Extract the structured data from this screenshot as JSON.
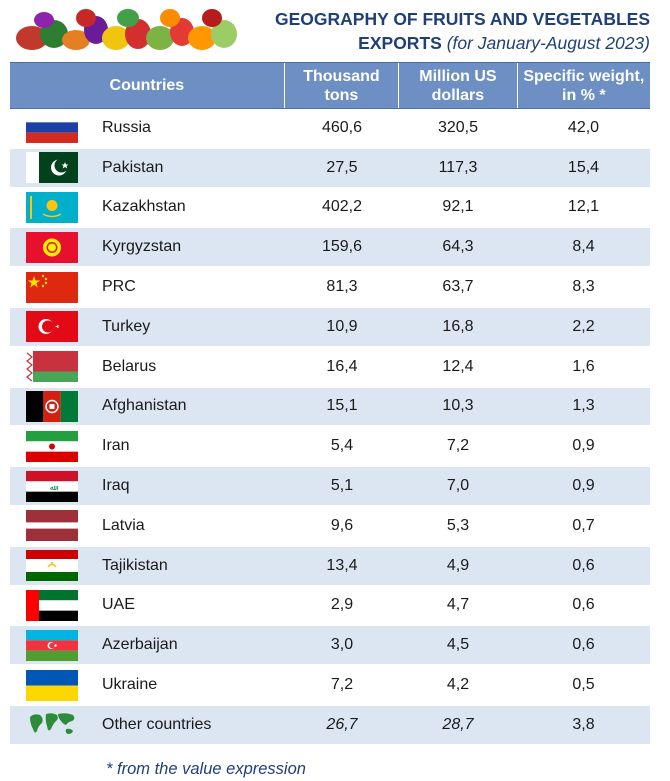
{
  "title": {
    "line1": "GEOGRAPHY OF FRUITS AND VEGETABLES",
    "line2": "EXPORTS",
    "period": "(for January-August 2023)"
  },
  "chart_data": {
    "type": "table",
    "columns": [
      "Countries",
      "Thousand tons",
      "Million US dollars",
      "Specific weight, in % *"
    ],
    "rows": [
      {
        "country": "Russia",
        "tons": "460,6",
        "usd": "320,5",
        "share": "42,0"
      },
      {
        "country": "Pakistan",
        "tons": "27,5",
        "usd": "117,3",
        "share": "15,4"
      },
      {
        "country": "Kazakhstan",
        "tons": "402,2",
        "usd": "92,1",
        "share": "12,1"
      },
      {
        "country": "Kyrgyzstan",
        "tons": "159,6",
        "usd": "64,3",
        "share": "8,4"
      },
      {
        "country": "PRC",
        "tons": "81,3",
        "usd": "63,7",
        "share": "8,3"
      },
      {
        "country": "Turkey",
        "tons": "10,9",
        "usd": "16,8",
        "share": "2,2"
      },
      {
        "country": "Belarus",
        "tons": "16,4",
        "usd": "12,4",
        "share": "1,6"
      },
      {
        "country": "Afghanistan",
        "tons": "15,1",
        "usd": "10,3",
        "share": "1,3"
      },
      {
        "country": "Iran",
        "tons": "5,4",
        "usd": "7,2",
        "share": "0,9"
      },
      {
        "country": "Iraq",
        "tons": "5,1",
        "usd": "7,0",
        "share": "0,9"
      },
      {
        "country": "Latvia",
        "tons": "9,6",
        "usd": "5,3",
        "share": "0,7"
      },
      {
        "country": "Tajikistan",
        "tons": "13,4",
        "usd": "4,9",
        "share": "0,6"
      },
      {
        "country": "UAE",
        "tons": "2,9",
        "usd": "4,7",
        "share": "0,6"
      },
      {
        "country": "Azerbaijan",
        "tons": "3,0",
        "usd": "4,5",
        "share": "0,6"
      },
      {
        "country": "Ukraine",
        "tons": "7,2",
        "usd": "4,2",
        "share": "0,5"
      },
      {
        "country": "Other countries",
        "tons": "26,7",
        "usd": "28,7",
        "share": "3,8"
      }
    ]
  },
  "footnote": "* from the value expression",
  "colors": {
    "header_bg": "#6d8fc3",
    "alt_row_bg": "#dce6f2",
    "title_color": "#1f3f7a"
  }
}
